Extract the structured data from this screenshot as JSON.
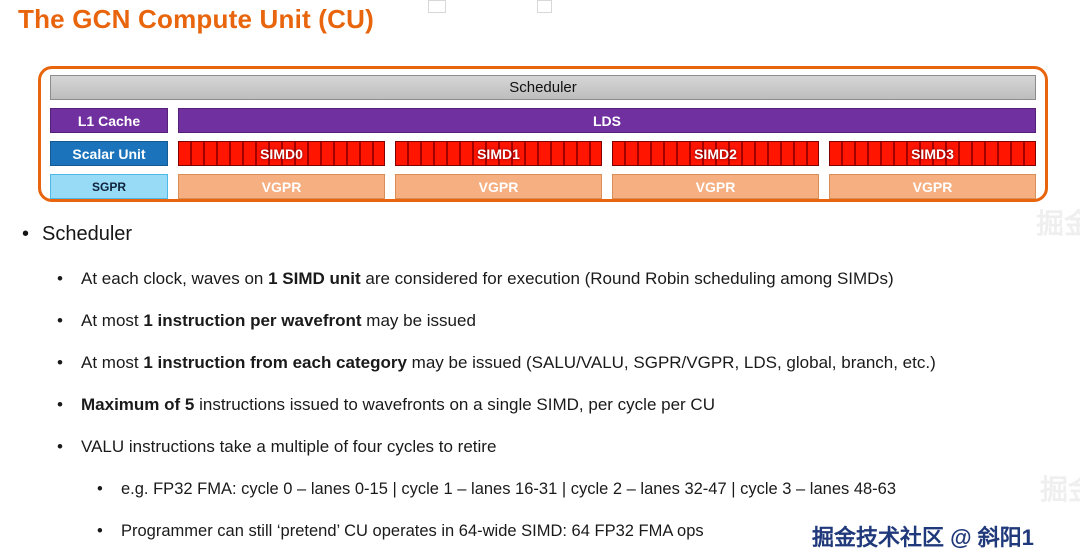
{
  "title": "The GCN Compute Unit (CU)",
  "diagram": {
    "scheduler": "Scheduler",
    "l1_cache": "L1 Cache",
    "lds": "LDS",
    "scalar_unit": "Scalar Unit",
    "sgpr": "SGPR",
    "simds": [
      "SIMD0",
      "SIMD1",
      "SIMD2",
      "SIMD3"
    ],
    "vgprs": [
      "VGPR",
      "VGPR",
      "VGPR",
      "VGPR"
    ],
    "colors": {
      "outline_orange": "#e8650d",
      "scheduler_gray": "#c8c8c8",
      "purple": "#7030a0",
      "scalar_blue": "#1b74bb",
      "sgpr_cyan": "#97dbf7",
      "simd_red": "#ff0000",
      "vgpr_salmon": "#f5af80"
    }
  },
  "bullets": {
    "marker": "•",
    "heading": "Scheduler",
    "level2": [
      {
        "runs": [
          {
            "t": "At each clock, waves on ",
            "b": false
          },
          {
            "t": "1 SIMD unit",
            "b": true
          },
          {
            "t": " are considered for execution (Round Robin scheduling among SIMDs)",
            "b": false
          }
        ]
      },
      {
        "runs": [
          {
            "t": "At most ",
            "b": false
          },
          {
            "t": "1 instruction per wavefront",
            "b": true
          },
          {
            "t": " may be issued",
            "b": false
          }
        ]
      },
      {
        "runs": [
          {
            "t": "At most ",
            "b": false
          },
          {
            "t": "1 instruction from each category",
            "b": true
          },
          {
            "t": " may be issued (SALU/VALU, SGPR/VGPR, LDS, global, branch, etc.)",
            "b": false
          }
        ]
      },
      {
        "runs": [
          {
            "t": "Maximum of 5",
            "b": true
          },
          {
            "t": " instructions issued to wavefronts on a single SIMD, per cycle per CU",
            "b": false
          }
        ]
      },
      {
        "runs": [
          {
            "t": "VALU instructions take a multiple of four cycles to retire",
            "b": false
          }
        ]
      }
    ],
    "level3": [
      {
        "runs": [
          {
            "t": "e.g. FP32 FMA: cycle 0 – lanes 0-15 | cycle 1 – lanes 16-31 | cycle 2 – lanes 32-47 | cycle 3 – lanes 48-63",
            "b": false
          }
        ]
      },
      {
        "runs": [
          {
            "t": "Programmer can still ‘pretend’ CU operates in 64-wide SIMD: 64 FP32 FMA ops",
            "b": false
          }
        ]
      }
    ]
  },
  "watermark": {
    "text": "掘金技术社区 @ 斜阳1",
    "ghost": "掘金"
  }
}
